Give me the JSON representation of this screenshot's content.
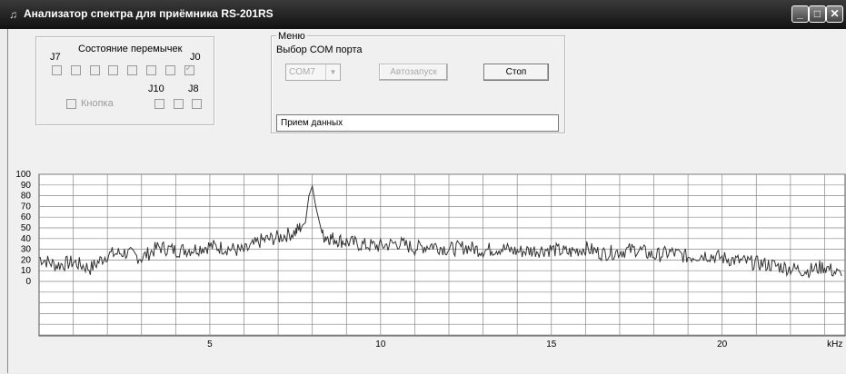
{
  "window": {
    "title": "Анализатор спектра для приёмника RS-201RS"
  },
  "jumpers": {
    "title": "Состояние перемычек",
    "j7": "J7",
    "j0": "J0",
    "j10": "J10",
    "j8": "J8",
    "button_label": "Кнопка",
    "top_row_checked": [
      false,
      false,
      false,
      false,
      false,
      false,
      false,
      true
    ],
    "bottom_row_checked": [
      false,
      false,
      false
    ]
  },
  "menu": {
    "title": "Меню",
    "com_label": "Выбор COM порта",
    "com_value": "COM7",
    "autostart_label": "Автозапуск",
    "stop_label": "Стоп",
    "status_text": "Прием данных"
  },
  "chart_data": {
    "type": "line",
    "title": "",
    "xlabel": "kHz",
    "ylabel": "",
    "xlim": [
      0,
      23.6
    ],
    "ylim": [
      0,
      100
    ],
    "y_ticks": [
      100,
      90,
      80,
      70,
      60,
      50,
      40,
      30,
      20,
      10,
      0
    ],
    "x_tick_labels": [
      {
        "x": 5,
        "label": "5"
      },
      {
        "x": 10,
        "label": "10"
      },
      {
        "x": 15,
        "label": "15"
      },
      {
        "x": 20,
        "label": "20"
      },
      {
        "x": 23.3,
        "label": "kHz"
      }
    ],
    "grid": true,
    "x": [
      0,
      0.5,
      1,
      1.5,
      2,
      2.5,
      3,
      3.5,
      4,
      4.5,
      5,
      5.5,
      6,
      6.5,
      7,
      7.5,
      7.8,
      7.9,
      8,
      8.1,
      8.3,
      8.6,
      9,
      9.5,
      10,
      10.5,
      11,
      11.5,
      12,
      12.5,
      13,
      13.5,
      14,
      14.5,
      15,
      15.5,
      16,
      16.5,
      17,
      17.5,
      18,
      18.5,
      19,
      19.5,
      20,
      20.5,
      21,
      21.5,
      22,
      22.5,
      23,
      23.5
    ],
    "values": [
      22,
      15,
      18,
      12,
      25,
      27,
      22,
      32,
      29,
      30,
      33,
      31,
      28,
      38,
      41,
      46,
      55,
      80,
      89,
      70,
      43,
      40,
      37,
      34,
      33,
      36,
      31,
      34,
      30,
      32,
      29,
      31,
      28,
      29,
      30,
      27,
      31,
      26,
      28,
      30,
      24,
      27,
      23,
      25,
      22,
      19,
      17,
      15,
      12,
      10,
      14,
      5
    ]
  }
}
